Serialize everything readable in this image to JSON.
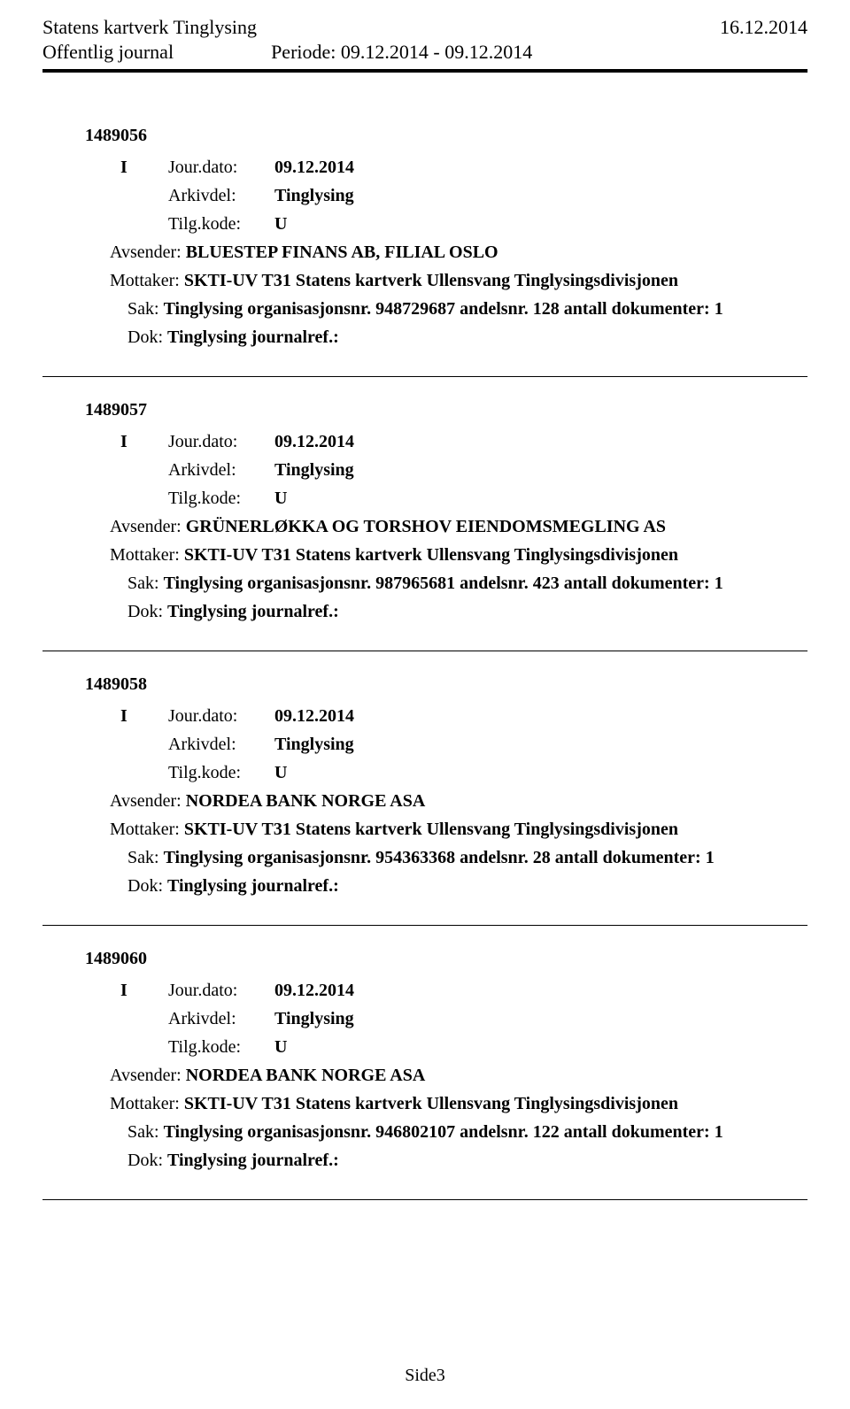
{
  "header": {
    "title_left": "Statens kartverk Tinglysing",
    "title_right": "16.12.2014",
    "sub_left": "Offentlig journal",
    "periode_label": "Periode:",
    "periode_value": "09.12.2014 - 09.12.2014"
  },
  "entries": [
    {
      "id": "1489056",
      "i": "I",
      "jour_label": "Jour.dato:",
      "jour_value": "09.12.2014",
      "arkiv_label": "Arkivdel:",
      "arkiv_value": "Tinglysing",
      "tilg_label": "Tilg.kode:",
      "tilg_value": "U",
      "avsender_label": "Avsender:",
      "avsender_value": "BLUESTEP FINANS AB, FILIAL OSLO",
      "mottaker_label": "Mottaker:",
      "mottaker_value": "SKTI-UV T31 Statens kartverk Ullensvang Tinglysingsdivisjonen",
      "sak_label": "Sak:",
      "sak_value": "Tinglysing organisasjonsnr. 948729687 andelsnr. 128 antall dokumenter: 1",
      "dok_label": "Dok:",
      "dok_value": "Tinglysing journalref.:"
    },
    {
      "id": "1489057",
      "i": "I",
      "jour_label": "Jour.dato:",
      "jour_value": "09.12.2014",
      "arkiv_label": "Arkivdel:",
      "arkiv_value": "Tinglysing",
      "tilg_label": "Tilg.kode:",
      "tilg_value": "U",
      "avsender_label": "Avsender:",
      "avsender_value": "GRÜNERLØKKA OG TORSHOV EIENDOMSMEGLING AS",
      "mottaker_label": "Mottaker:",
      "mottaker_value": "SKTI-UV T31 Statens kartverk Ullensvang Tinglysingsdivisjonen",
      "sak_label": "Sak:",
      "sak_value": "Tinglysing organisasjonsnr. 987965681 andelsnr. 423 antall dokumenter: 1",
      "dok_label": "Dok:",
      "dok_value": "Tinglysing journalref.:"
    },
    {
      "id": "1489058",
      "i": "I",
      "jour_label": "Jour.dato:",
      "jour_value": "09.12.2014",
      "arkiv_label": "Arkivdel:",
      "arkiv_value": "Tinglysing",
      "tilg_label": "Tilg.kode:",
      "tilg_value": "U",
      "avsender_label": "Avsender:",
      "avsender_value": "NORDEA BANK NORGE ASA",
      "mottaker_label": "Mottaker:",
      "mottaker_value": "SKTI-UV T31 Statens kartverk Ullensvang Tinglysingsdivisjonen",
      "sak_label": "Sak:",
      "sak_value": "Tinglysing organisasjonsnr. 954363368 andelsnr. 28 antall dokumenter: 1",
      "dok_label": "Dok:",
      "dok_value": "Tinglysing journalref.:"
    },
    {
      "id": "1489060",
      "i": "I",
      "jour_label": "Jour.dato:",
      "jour_value": "09.12.2014",
      "arkiv_label": "Arkivdel:",
      "arkiv_value": "Tinglysing",
      "tilg_label": "Tilg.kode:",
      "tilg_value": "U",
      "avsender_label": "Avsender:",
      "avsender_value": "NORDEA BANK NORGE ASA",
      "mottaker_label": "Mottaker:",
      "mottaker_value": "SKTI-UV T31 Statens kartverk Ullensvang Tinglysingsdivisjonen",
      "sak_label": "Sak:",
      "sak_value": "Tinglysing organisasjonsnr. 946802107 andelsnr. 122 antall dokumenter: 1",
      "dok_label": "Dok:",
      "dok_value": "Tinglysing journalref.:"
    }
  ],
  "footer": "Side3"
}
